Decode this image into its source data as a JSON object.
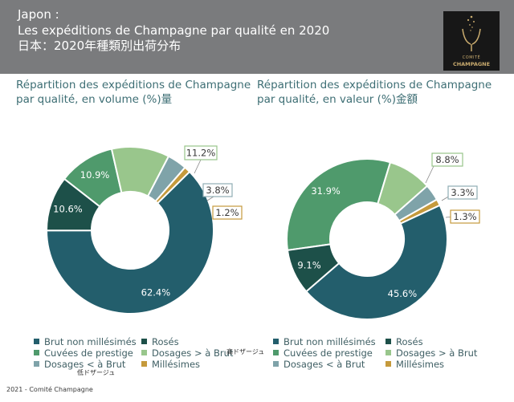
{
  "header": {
    "line1": "Japon :",
    "line2": "Les expéditions de Champagne par qualité en 2020",
    "line3": "日本：2020年種類別出荷分布"
  },
  "logo": {
    "line1": "COMITÉ",
    "line2": "CHAMPAGNE"
  },
  "colors": {
    "brut": "#235e6c",
    "roses": "#1d5049",
    "prestige": "#4f9a6c",
    "dosages_gt": "#99c68c",
    "dosages_lt": "#7fa3a9",
    "millesimes": "#c59a3c",
    "label_border_light": "#98c58a",
    "label_border_gold": "#c59a3c",
    "label_border_grey": "#8fadb3"
  },
  "chart_data": [
    {
      "type": "pie",
      "title_line1": "Répartition des expéditions de Champagne",
      "title_line2": "par qualité, en volume (%)量",
      "labels": [
        "Brut non millésimés",
        "Rosés",
        "Cuvées de prestige",
        "Dosages > à Brut",
        "Dosages < à Brut",
        "Millésimes"
      ],
      "values": [
        62.4,
        10.6,
        10.9,
        11.2,
        3.8,
        1.2
      ],
      "display": [
        "62.4%",
        "10.6%",
        "10.9%",
        "11.2%",
        "3.8%",
        "1.2%"
      ]
    },
    {
      "type": "pie",
      "title_line1": "Répartition des expéditions de Champagne",
      "title_line2": "par qualité, en valeur (%)金額",
      "labels": [
        "Brut non millésimés",
        "Rosés",
        "Cuvées de prestige",
        "Dosages > à Brut",
        "Dosages < à Brut",
        "Millésimes"
      ],
      "values": [
        45.6,
        9.1,
        31.9,
        8.8,
        3.3,
        1.3
      ],
      "display": [
        "45.6%",
        "9.1%",
        "31.9%",
        "8.8%",
        "3.3%",
        "1.3%"
      ]
    }
  ],
  "legend": {
    "items": [
      "Brut non millésimés",
      "Rosés",
      "Cuvées de prestige",
      "Dosages > à Brut",
      "Dosages < à Brut",
      "Millésimes"
    ],
    "note_high": "高ドザージュ",
    "note_low": "低ドザージュ"
  },
  "footer": "2021 - Comité Champagne"
}
